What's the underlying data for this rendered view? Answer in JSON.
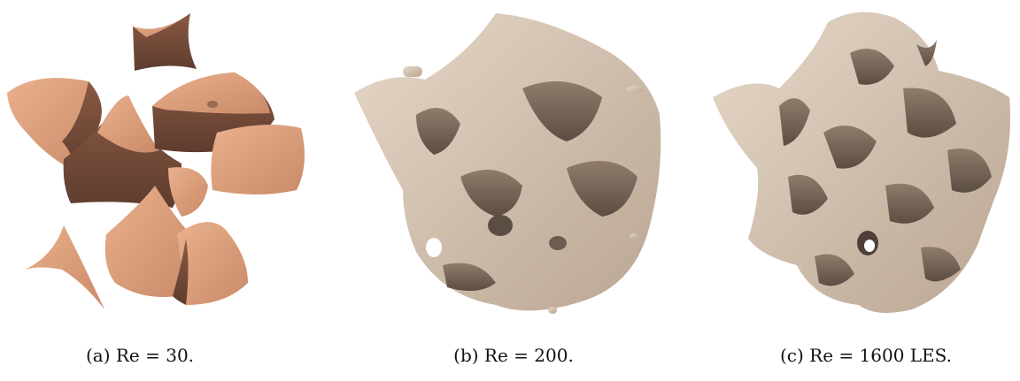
{
  "figure": {
    "panels": [
      {
        "caption": "(a) Re = 30."
      },
      {
        "caption": "(b) Re = 200."
      },
      {
        "caption": "(c) Re = 1600 LES."
      }
    ]
  }
}
